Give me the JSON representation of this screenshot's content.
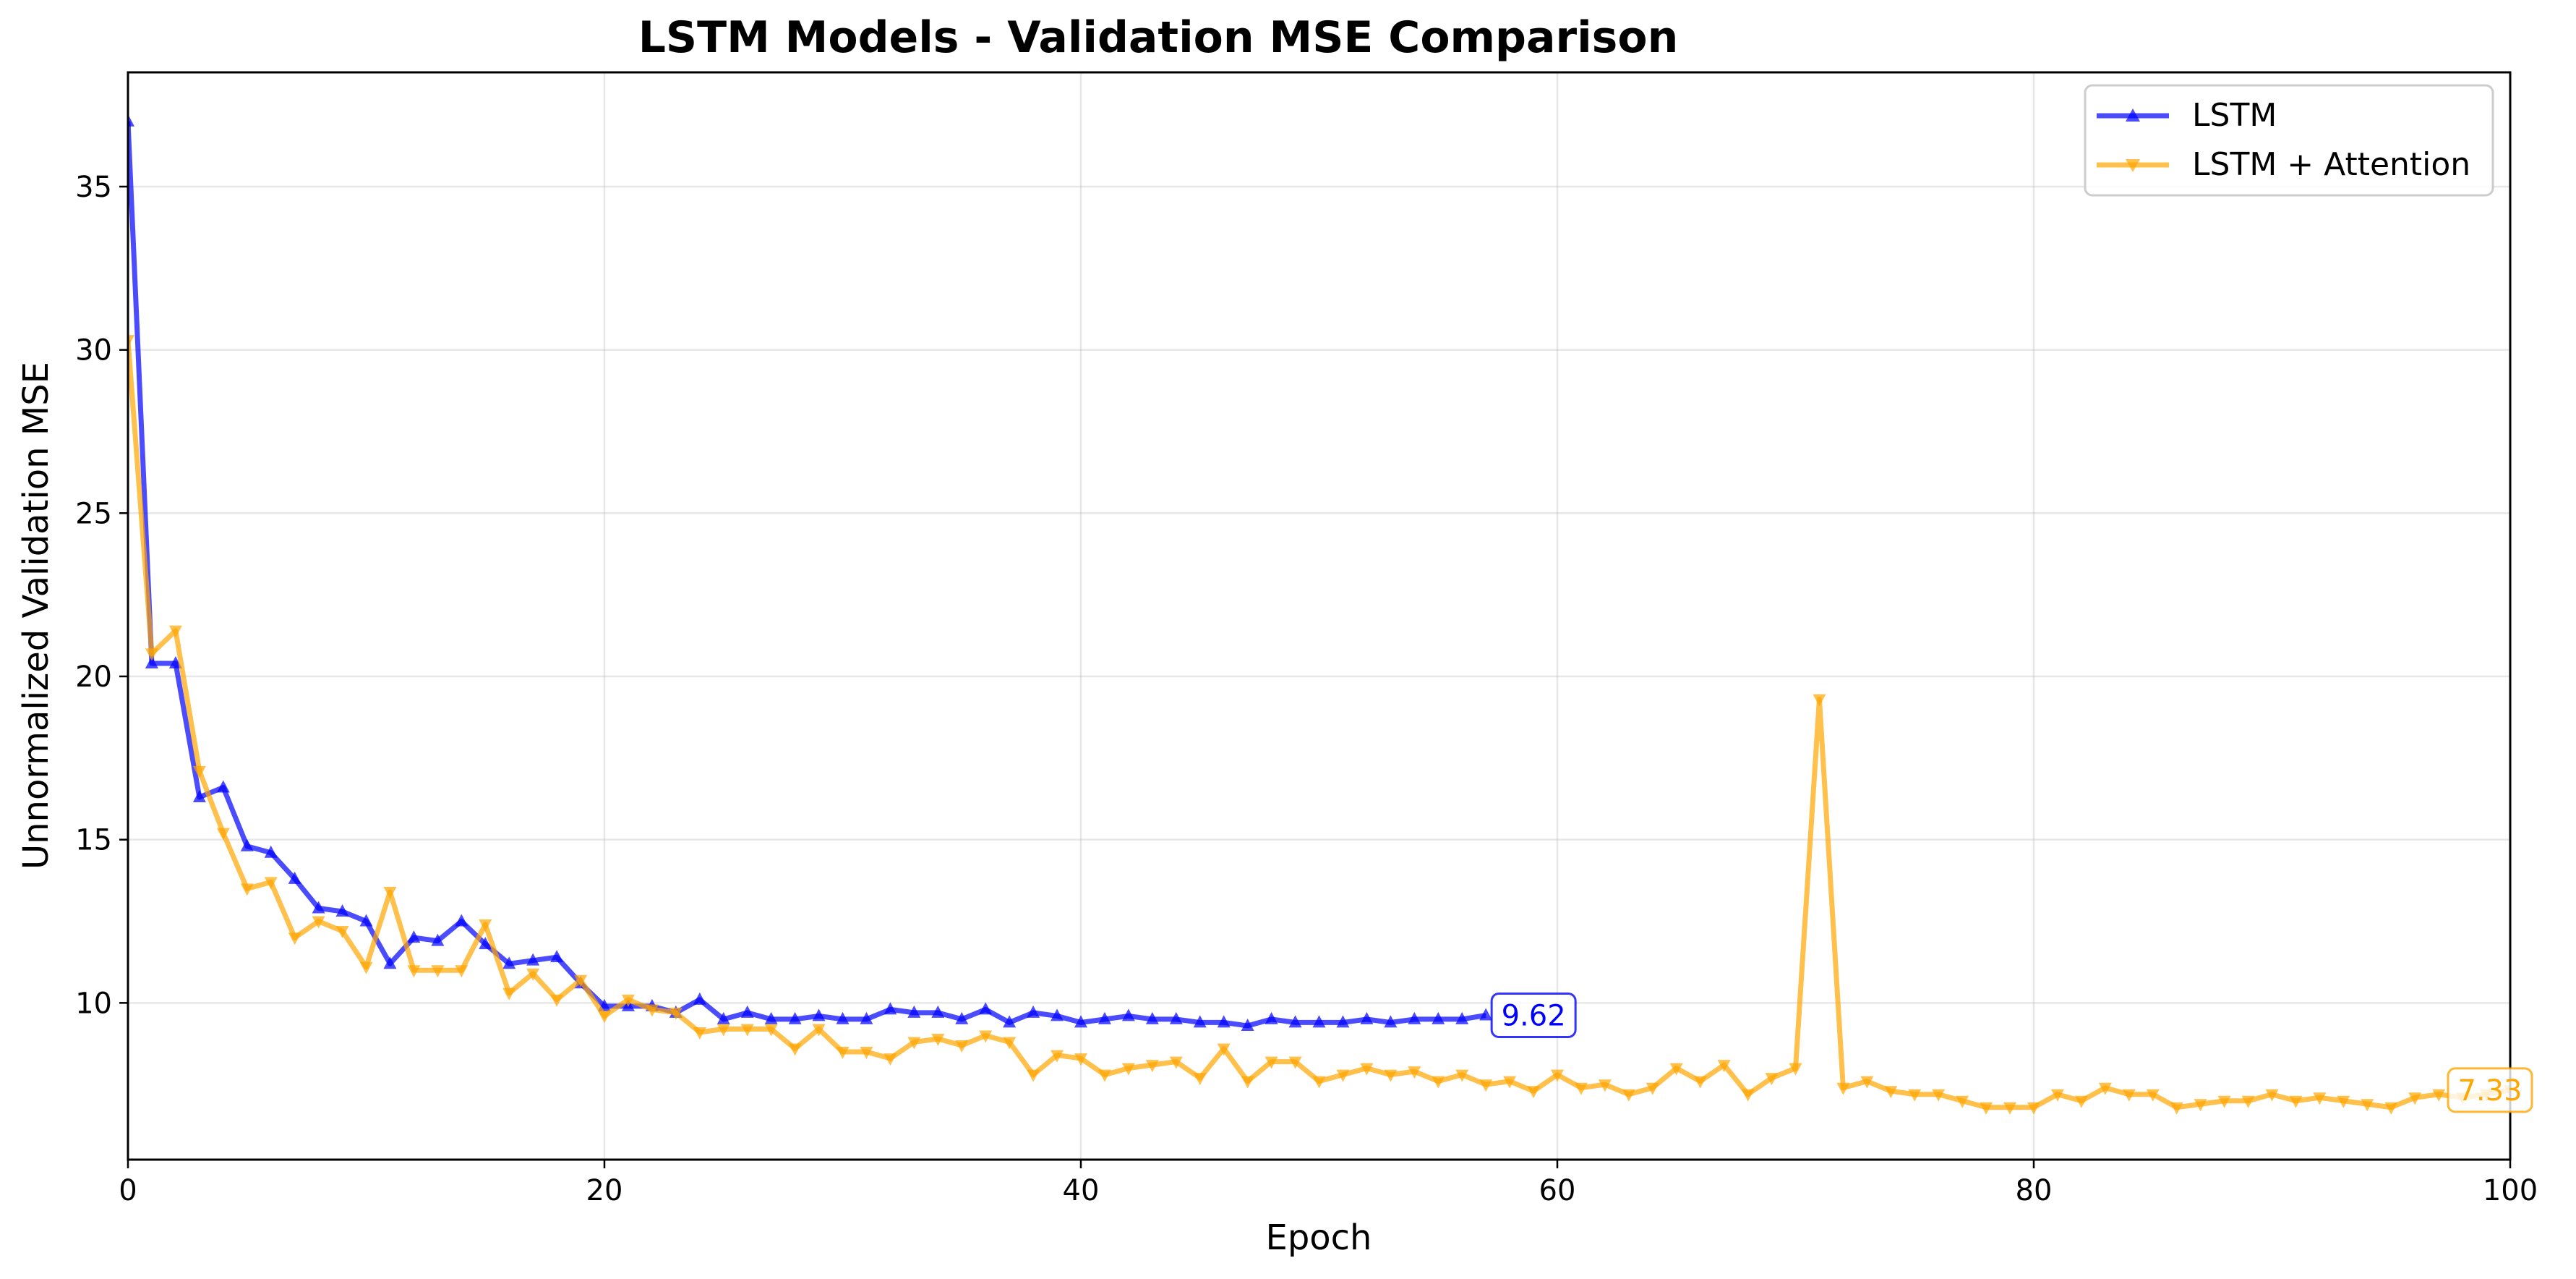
{
  "chart_data": {
    "type": "line",
    "title": "LSTM Models - Validation MSE Comparison",
    "xlabel": "Epoch",
    "ylabel": "Unnormalized Validation MSE",
    "xlim": [
      0,
      100
    ],
    "ylim": [
      5.2,
      38.5
    ],
    "xticks": [
      0,
      20,
      40,
      60,
      80,
      100
    ],
    "yticks": [
      10,
      15,
      20,
      25,
      30,
      35
    ],
    "grid": true,
    "legend_position": "top-right",
    "series": [
      {
        "name": "LSTM",
        "color": "#0000ff",
        "marker": "triangle-up",
        "end_label": "9.62",
        "values": [
          37.0,
          20.4,
          20.4,
          16.3,
          16.6,
          14.8,
          14.6,
          13.8,
          12.9,
          12.8,
          12.5,
          11.2,
          12.0,
          11.9,
          12.5,
          11.8,
          11.2,
          11.3,
          11.4,
          10.6,
          9.9,
          9.9,
          9.9,
          9.7,
          10.1,
          9.5,
          9.7,
          9.5,
          9.5,
          9.6,
          9.5,
          9.5,
          9.8,
          9.7,
          9.7,
          9.5,
          9.8,
          9.4,
          9.7,
          9.6,
          9.4,
          9.5,
          9.6,
          9.5,
          9.5,
          9.4,
          9.4,
          9.3,
          9.5,
          9.4,
          9.4,
          9.4,
          9.5,
          9.4,
          9.5,
          9.5,
          9.5,
          9.62
        ]
      },
      {
        "name": "LSTM + Attention",
        "color": "#ffa500",
        "marker": "triangle-down",
        "end_label": "7.33",
        "values": [
          30.3,
          20.7,
          21.4,
          17.1,
          15.2,
          13.5,
          13.7,
          12.0,
          12.5,
          12.2,
          11.1,
          13.4,
          11.0,
          11.0,
          11.0,
          12.4,
          10.3,
          10.9,
          10.1,
          10.7,
          9.6,
          10.1,
          9.8,
          9.7,
          9.1,
          9.2,
          9.2,
          9.2,
          8.6,
          9.2,
          8.5,
          8.5,
          8.3,
          8.8,
          8.9,
          8.7,
          9.0,
          8.8,
          7.8,
          8.4,
          8.3,
          7.8,
          8.0,
          8.1,
          8.2,
          7.7,
          8.6,
          7.6,
          8.2,
          8.2,
          7.6,
          7.8,
          8.0,
          7.8,
          7.9,
          7.6,
          7.8,
          7.5,
          7.6,
          7.3,
          7.8,
          7.4,
          7.5,
          7.2,
          7.4,
          8.0,
          7.6,
          8.1,
          7.2,
          7.7,
          8.0,
          19.3,
          7.4,
          7.6,
          7.3,
          7.2,
          7.2,
          7.0,
          6.8,
          6.8,
          6.8,
          7.2,
          7.0,
          7.4,
          7.2,
          7.2,
          6.8,
          6.9,
          7.0,
          7.0,
          7.2,
          7.0,
          7.1,
          7.0,
          6.9,
          6.8,
          7.1,
          7.2,
          7.1,
          7.2,
          7.33
        ]
      }
    ]
  }
}
